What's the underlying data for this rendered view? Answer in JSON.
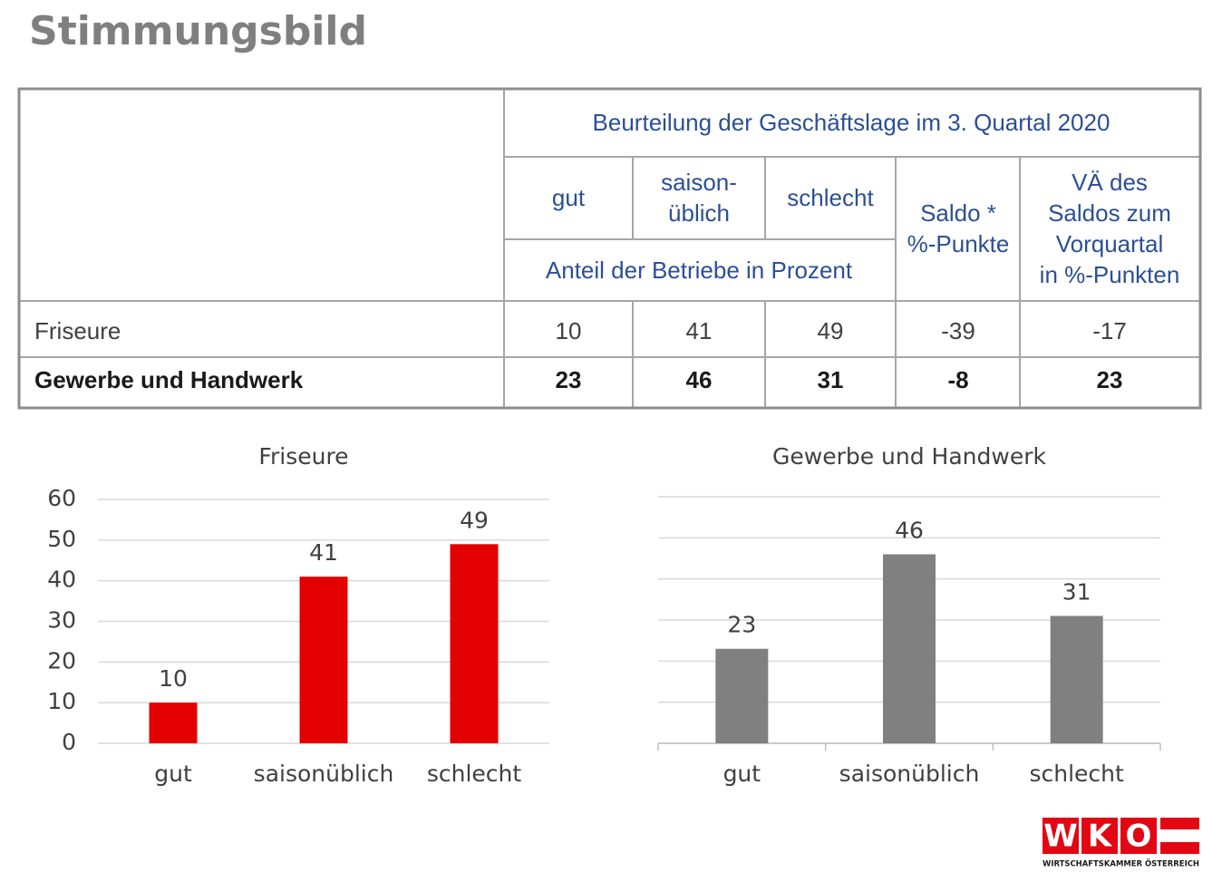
{
  "title": "Stimmungsbild",
  "table": {
    "caption": "Beurteilung der Geschäftslage im 3. Quartal 2020",
    "columns": [
      [
        "gut"
      ],
      [
        "saison-",
        "üblich"
      ],
      [
        "schlecht"
      ],
      [
        "Saldo *",
        "%-Punkte"
      ],
      [
        "VÄ des",
        "Saldos zum",
        "Vorquartal",
        "in %-Punkten"
      ]
    ],
    "unit_note": "Anteil der Betriebe in Prozent",
    "rows": [
      {
        "label": "Friseure",
        "values": [
          10,
          41,
          49,
          -39,
          -17
        ],
        "bold": false
      },
      {
        "label": "Gewerbe und Handwerk",
        "values": [
          23,
          46,
          31,
          -8,
          23
        ],
        "bold": true
      }
    ]
  },
  "chart_data": [
    {
      "type": "bar",
      "title": "Friseure",
      "categories": [
        "gut",
        "saisonüblich",
        "schlecht"
      ],
      "values": [
        10,
        41,
        49
      ],
      "color": "#e50000",
      "ylim": [
        0,
        60
      ],
      "yticks": [
        0,
        10,
        20,
        30,
        40,
        50,
        60
      ],
      "ytick_labels": true,
      "grid": true,
      "x_axis_line": false
    },
    {
      "type": "bar",
      "title": "Gewerbe und Handwerk",
      "categories": [
        "gut",
        "saisonüblich",
        "schlecht"
      ],
      "values": [
        23,
        46,
        31
      ],
      "color": "#808080",
      "ylim": [
        0,
        60
      ],
      "yticks": [
        0,
        10,
        20,
        30,
        40,
        50,
        60
      ],
      "ytick_labels": false,
      "grid": true,
      "x_axis_line": true
    }
  ],
  "logo": {
    "letters": [
      "W",
      "K",
      "O"
    ],
    "text": "WIRTSCHAFTSKAMMER ÖSTERREICH"
  }
}
